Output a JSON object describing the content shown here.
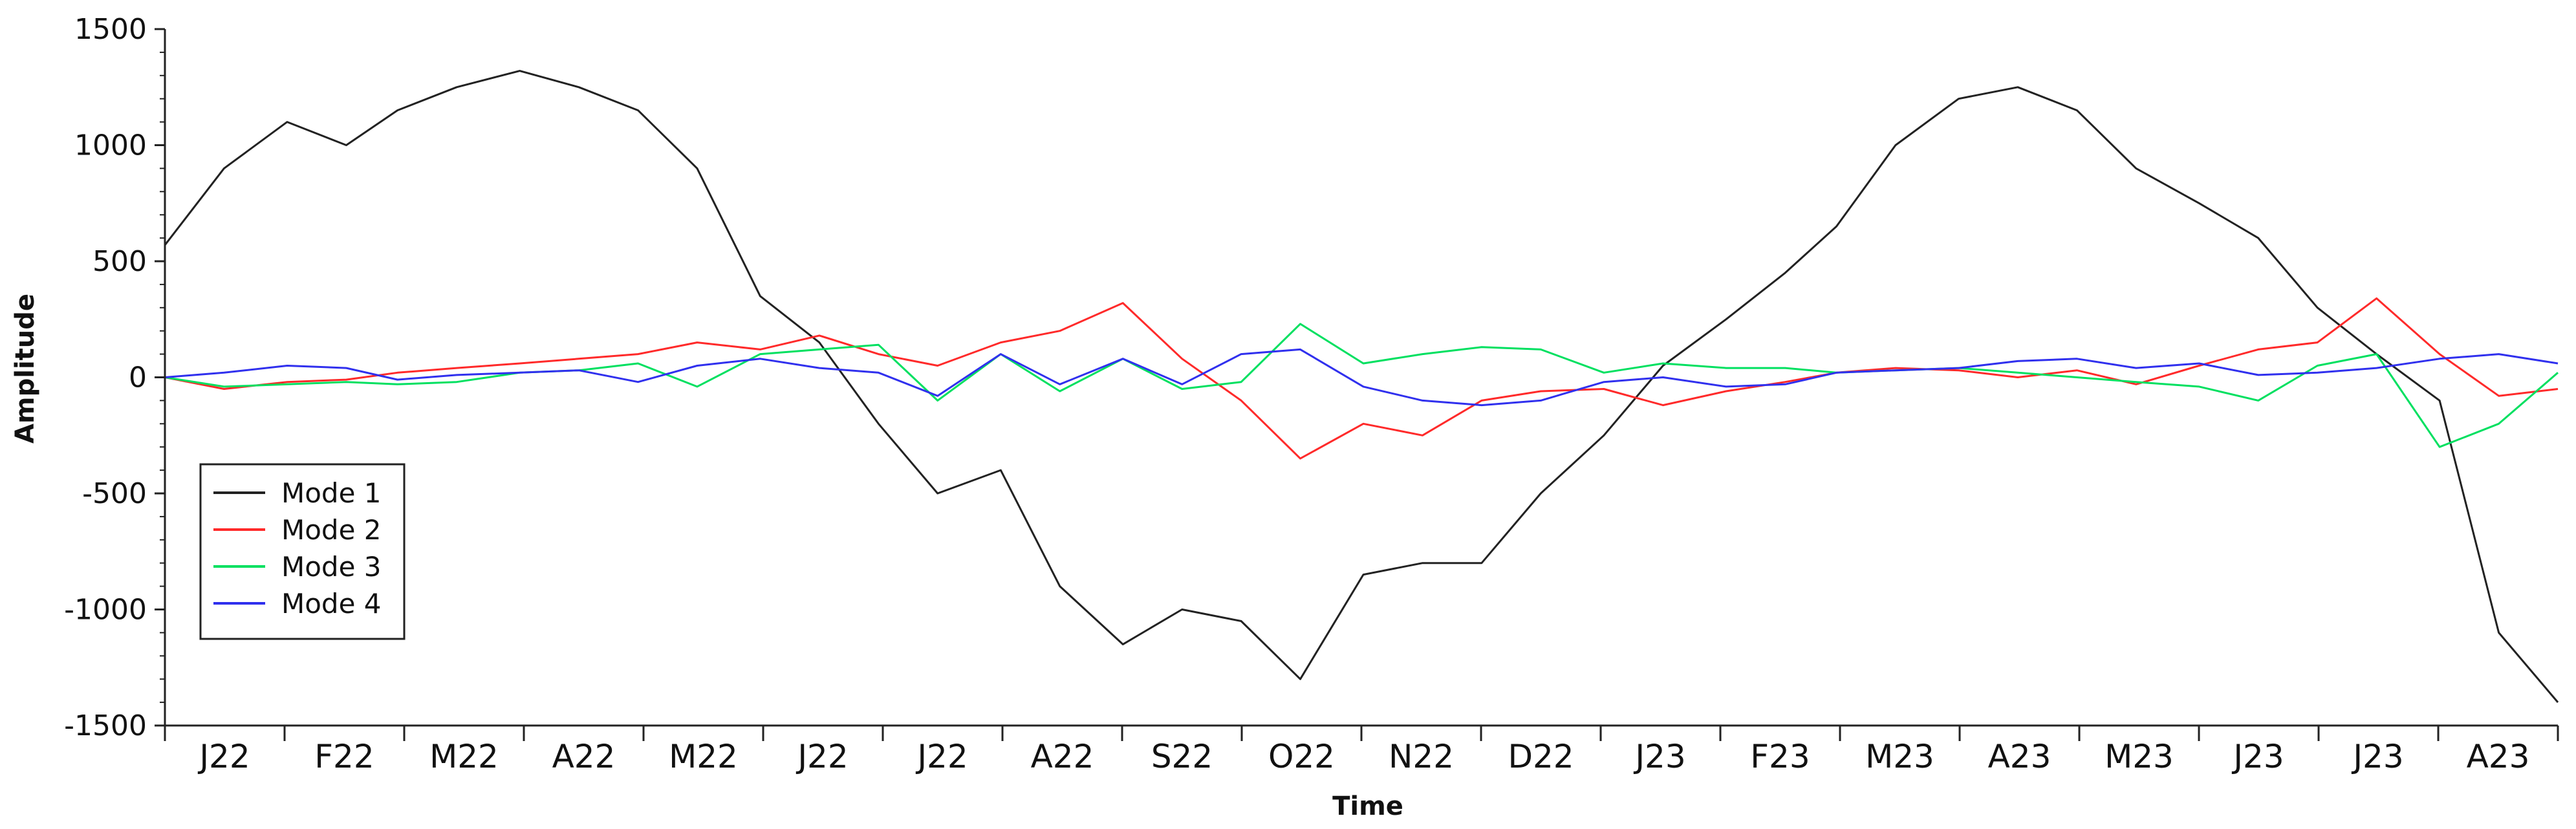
{
  "chart_data": {
    "type": "line",
    "title": "",
    "xlabel": "Time",
    "ylabel": "Amplitude",
    "ylim": [
      -1500,
      1500
    ],
    "yticks": [
      -1500,
      -1000,
      -500,
      0,
      500,
      1000,
      1500
    ],
    "ytick_labels": [
      "-1500",
      "-1000",
      "-500",
      "0",
      "500",
      "1000",
      "1500"
    ],
    "x": [
      "2022-01-01",
      "2022-01-16",
      "2022-02-01",
      "2022-02-16",
      "2022-03-01",
      "2022-03-16",
      "2022-04-01",
      "2022-04-16",
      "2022-05-01",
      "2022-05-16",
      "2022-06-01",
      "2022-06-16",
      "2022-07-01",
      "2022-07-16",
      "2022-08-01",
      "2022-08-16",
      "2022-09-01",
      "2022-09-16",
      "2022-10-01",
      "2022-10-16",
      "2022-11-01",
      "2022-11-16",
      "2022-12-01",
      "2022-12-16",
      "2023-01-01",
      "2023-01-16",
      "2023-02-01",
      "2023-02-16",
      "2023-03-01",
      "2023-03-16",
      "2023-04-01",
      "2023-04-16",
      "2023-05-01",
      "2023-05-16",
      "2023-06-01",
      "2023-06-16",
      "2023-07-01",
      "2023-07-16",
      "2023-08-01",
      "2023-08-16",
      "2023-08-31"
    ],
    "x_range": [
      "2022-01-01",
      "2023-08-31"
    ],
    "xtick_labels": [
      "J22",
      "F22",
      "M22",
      "A22",
      "M22",
      "J22",
      "J22",
      "A22",
      "S22",
      "O22",
      "N22",
      "D22",
      "J23",
      "F23",
      "M23",
      "A23",
      "M23",
      "J23",
      "J23",
      "A23"
    ],
    "series": [
      {
        "name": "Mode 1",
        "color": "#222222",
        "values": [
          570,
          900,
          1100,
          1000,
          1150,
          1250,
          1320,
          1250,
          1150,
          900,
          350,
          150,
          -200,
          -500,
          -400,
          -900,
          -1150,
          -1000,
          -1050,
          -1300,
          -850,
          -800,
          -800,
          -500,
          -250,
          50,
          250,
          450,
          650,
          1000,
          1200,
          1250,
          1150,
          900,
          750,
          600,
          300,
          100,
          -100,
          -1100,
          -1400
        ]
      },
      {
        "name": "Mode 2",
        "color": "#ff2a2a",
        "values": [
          0,
          -50,
          -20,
          -10,
          20,
          40,
          60,
          80,
          100,
          150,
          120,
          180,
          100,
          50,
          150,
          200,
          320,
          80,
          -100,
          -350,
          -200,
          -250,
          -100,
          -60,
          -50,
          -120,
          -60,
          -20,
          20,
          40,
          30,
          0,
          30,
          -30,
          50,
          120,
          150,
          340,
          100,
          -80,
          -50
        ]
      },
      {
        "name": "Mode 3",
        "color": "#00e060",
        "values": [
          0,
          -40,
          -30,
          -20,
          -30,
          -20,
          20,
          30,
          60,
          -40,
          100,
          120,
          140,
          -100,
          100,
          -60,
          80,
          -50,
          -20,
          230,
          60,
          100,
          130,
          120,
          20,
          60,
          40,
          40,
          20,
          30,
          40,
          20,
          0,
          -20,
          -40,
          -100,
          50,
          100,
          -300,
          -200,
          20
        ]
      },
      {
        "name": "Mode 4",
        "color": "#3030ee",
        "values": [
          0,
          20,
          50,
          40,
          -10,
          10,
          20,
          30,
          -20,
          50,
          80,
          40,
          20,
          -80,
          100,
          -30,
          80,
          -30,
          100,
          120,
          -40,
          -100,
          -120,
          -100,
          -20,
          0,
          -40,
          -30,
          20,
          30,
          40,
          70,
          80,
          40,
          60,
          10,
          20,
          40,
          80,
          100,
          60
        ]
      }
    ],
    "legend": {
      "position": "bottom-left",
      "entries": [
        "Mode 1",
        "Mode 2",
        "Mode 3",
        "Mode 4"
      ]
    },
    "grid": false
  }
}
